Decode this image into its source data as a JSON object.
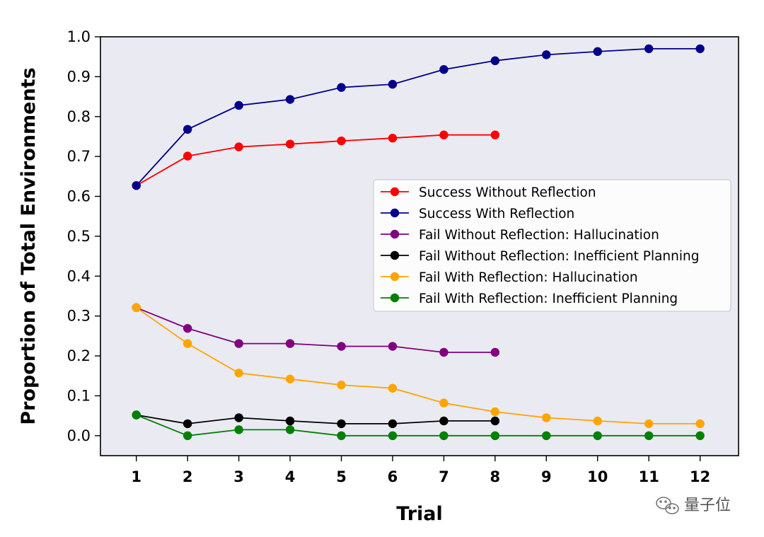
{
  "chart_data": {
    "type": "line",
    "title": "",
    "xlabel": "Trial",
    "ylabel": "Proportion of Total Environments",
    "xlim": [
      0.3,
      12.75
    ],
    "ylim": [
      -0.05,
      1.0
    ],
    "grid": false,
    "legend_position": "center-right",
    "x_ticks": [
      "1",
      "2",
      "3",
      "4",
      "5",
      "6",
      "7",
      "8",
      "9",
      "10",
      "11",
      "12"
    ],
    "y_ticks": [
      "0.0",
      "0.1",
      "0.2",
      "0.3",
      "0.4",
      "0.5",
      "0.6",
      "0.7",
      "0.8",
      "0.9",
      "1.0"
    ],
    "series": [
      {
        "name": "Success Without Reflection",
        "color": "#ff0000",
        "x": [
          1,
          2,
          3,
          4,
          5,
          6,
          7,
          8
        ],
        "values": [
          0.627,
          0.701,
          0.724,
          0.731,
          0.739,
          0.746,
          0.754,
          0.754
        ]
      },
      {
        "name": "Success With Reflection",
        "color": "#00008b",
        "x": [
          1,
          2,
          3,
          4,
          5,
          6,
          7,
          8,
          9,
          10,
          11,
          12
        ],
        "values": [
          0.627,
          0.768,
          0.828,
          0.843,
          0.873,
          0.881,
          0.918,
          0.94,
          0.955,
          0.963,
          0.97,
          0.97
        ]
      },
      {
        "name": "Fail Without Reflection: Hallucination",
        "color": "#800080",
        "x": [
          1,
          2,
          3,
          4,
          5,
          6,
          7,
          8
        ],
        "values": [
          0.321,
          0.269,
          0.231,
          0.231,
          0.224,
          0.224,
          0.209,
          0.209
        ]
      },
      {
        "name": "Fail Without Reflection: Inefficient Planning",
        "color": "#000000",
        "x": [
          1,
          2,
          3,
          4,
          5,
          6,
          7,
          8
        ],
        "values": [
          0.052,
          0.03,
          0.045,
          0.037,
          0.03,
          0.03,
          0.037,
          0.037
        ]
      },
      {
        "name": "Fail With Reflection: Hallucination",
        "color": "#ffa500",
        "x": [
          1,
          2,
          3,
          4,
          5,
          6,
          7,
          8,
          9,
          10,
          11,
          12
        ],
        "values": [
          0.321,
          0.231,
          0.157,
          0.142,
          0.127,
          0.119,
          0.082,
          0.06,
          0.045,
          0.037,
          0.03,
          0.03
        ]
      },
      {
        "name": "Fail With Reflection: Inefficient Planning",
        "color": "#008000",
        "x": [
          1,
          2,
          3,
          4,
          5,
          6,
          7,
          8,
          9,
          10,
          11,
          12
        ],
        "values": [
          0.052,
          0.0,
          0.015,
          0.015,
          0.0,
          0.0,
          0.0,
          0.0,
          0.0,
          0.0,
          0.0,
          0.0
        ]
      }
    ]
  },
  "watermark": {
    "text": "量子位",
    "icon": "wechat-icon"
  },
  "colors": {
    "plot_background": "#eaeaf2",
    "watermark": "#555555"
  }
}
